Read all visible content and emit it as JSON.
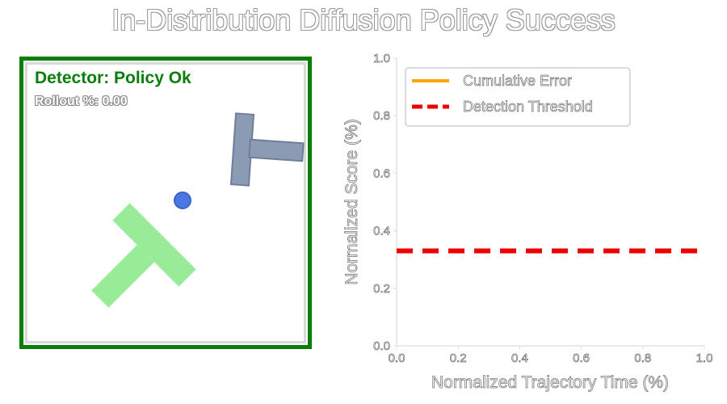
{
  "title": "In-Distribution Diffusion Policy Success",
  "simulation": {
    "status_text": "Detector: Policy Ok",
    "rollout_text": "Rollout %: 0.00",
    "status_color": "#0a7d0a",
    "target_color": "#98ec98",
    "object_color": "#8c9bb4",
    "agent_color": "#4a78e0"
  },
  "chart_data": {
    "type": "line",
    "xlabel": "Normalized Trajectory Time (%)",
    "ylabel": "Normalized Score (%)",
    "xlim": [
      0.0,
      1.0
    ],
    "ylim": [
      0.0,
      1.0
    ],
    "x_ticks": [
      "0.0",
      "0.2",
      "0.4",
      "0.6",
      "0.8",
      "1.0"
    ],
    "y_ticks": [
      "0.0",
      "0.2",
      "0.4",
      "0.6",
      "0.8",
      "1.0"
    ],
    "grid": false,
    "legend_position": "upper-left",
    "series": [
      {
        "name": "Cumulative Error",
        "color": "#ffa500",
        "style": "solid",
        "x": [],
        "y": []
      },
      {
        "name": "Detection Threshold",
        "color": "#ee0000",
        "style": "dashed",
        "x": [
          0.0,
          1.0
        ],
        "y": [
          0.33,
          0.33
        ]
      }
    ]
  }
}
